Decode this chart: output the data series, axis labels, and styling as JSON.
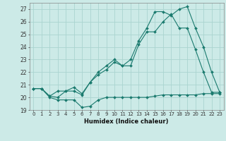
{
  "title": "",
  "xlabel": "Humidex (Indice chaleur)",
  "bg_color": "#cceae7",
  "grid_color": "#aad4d0",
  "line_color": "#1a7a6e",
  "xlim": [
    -0.5,
    23.5
  ],
  "ylim": [
    19.0,
    27.5
  ],
  "xticks": [
    0,
    1,
    2,
    3,
    4,
    5,
    6,
    7,
    8,
    9,
    10,
    11,
    12,
    13,
    14,
    15,
    16,
    17,
    18,
    19,
    20,
    21,
    22,
    23
  ],
  "yticks": [
    19,
    20,
    21,
    22,
    23,
    24,
    25,
    26,
    27
  ],
  "series1_x": [
    0,
    1,
    2,
    3,
    4,
    5,
    6,
    7,
    8,
    9,
    10,
    11,
    12,
    13,
    14,
    15,
    16,
    17,
    18,
    19,
    20,
    21,
    22,
    23
  ],
  "series1_y": [
    20.7,
    20.7,
    20.0,
    19.8,
    19.8,
    19.8,
    19.2,
    19.3,
    19.8,
    20.0,
    20.0,
    20.0,
    20.0,
    20.0,
    20.0,
    20.1,
    20.2,
    20.2,
    20.2,
    20.2,
    20.2,
    20.3,
    20.3,
    20.3
  ],
  "series2_x": [
    0,
    1,
    2,
    3,
    4,
    5,
    6,
    7,
    8,
    9,
    10,
    11,
    12,
    13,
    14,
    15,
    16,
    17,
    18,
    19,
    20,
    21,
    22,
    23
  ],
  "series2_y": [
    20.7,
    20.7,
    20.1,
    20.0,
    20.5,
    20.5,
    20.2,
    21.2,
    21.8,
    22.2,
    22.8,
    22.5,
    22.5,
    24.2,
    25.2,
    25.2,
    26.0,
    26.6,
    25.5,
    25.5,
    23.8,
    22.0,
    20.4,
    20.4
  ],
  "series3_x": [
    0,
    1,
    2,
    3,
    4,
    5,
    6,
    7,
    8,
    9,
    10,
    11,
    12,
    13,
    14,
    15,
    16,
    17,
    18,
    19,
    20,
    21,
    22,
    23
  ],
  "series3_y": [
    20.7,
    20.7,
    20.1,
    20.5,
    20.5,
    20.8,
    20.3,
    21.2,
    22.0,
    22.5,
    23.0,
    22.5,
    23.0,
    24.5,
    25.5,
    26.8,
    26.8,
    26.5,
    27.0,
    27.2,
    25.5,
    24.0,
    22.0,
    20.4
  ]
}
